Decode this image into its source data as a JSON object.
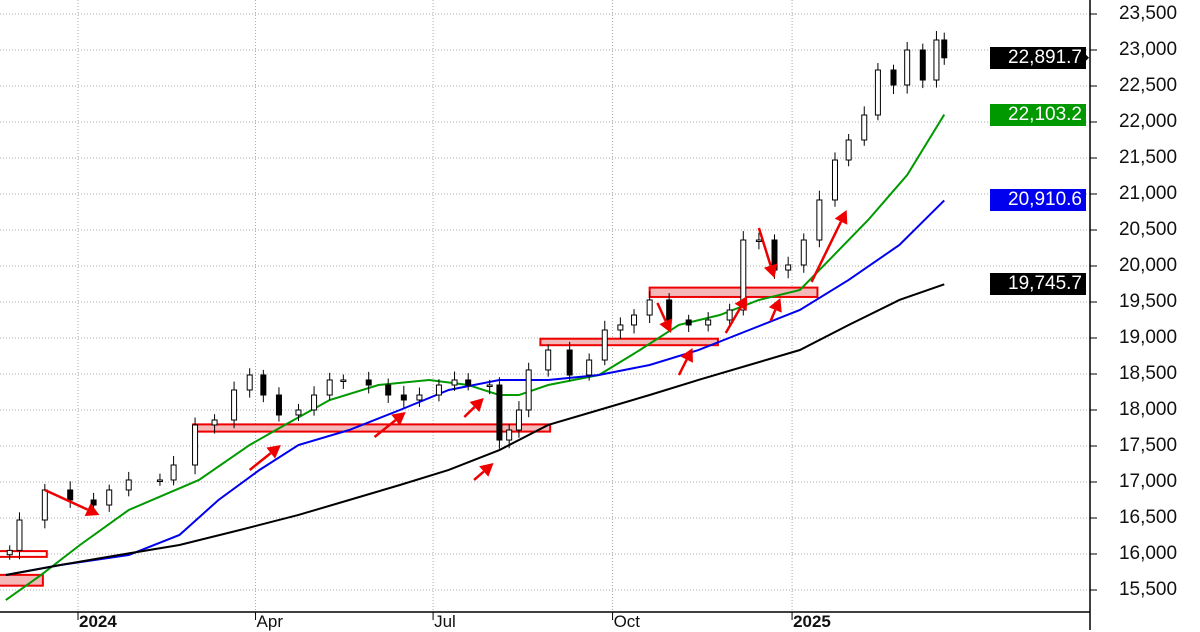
{
  "chart_data": {
    "type": "candlestick",
    "title": "",
    "ylim": [
      15300,
      23700
    ],
    "y_ticks": [
      "15,500",
      "16,000",
      "16,500",
      "17,000",
      "17,500",
      "18,000",
      "18,500",
      "19,000",
      "19,500",
      "20,000",
      "20,500",
      "21,000",
      "21,500",
      "22,000",
      "22,500",
      "23,000",
      "23,500"
    ],
    "y_tick_values": [
      15500,
      16000,
      16500,
      17000,
      17500,
      18000,
      18500,
      19000,
      19500,
      20000,
      20500,
      21000,
      21500,
      22000,
      22500,
      23000,
      23500
    ],
    "x_ticks": [
      {
        "label": "2024",
        "date": "2024-01-01",
        "bold": true
      },
      {
        "label": "Apr",
        "date": "2024-04-01",
        "bold": false
      },
      {
        "label": "Jul",
        "date": "2024-07-01",
        "bold": false
      },
      {
        "label": "Oct",
        "date": "2024-10-01",
        "bold": false
      },
      {
        "label": "2025",
        "date": "2025-01-01",
        "bold": true
      }
    ],
    "grid": true,
    "price": [
      [
        "2023-11-27",
        16050
      ],
      [
        "2023-12-02",
        16472
      ],
      [
        "2023-12-15",
        16889
      ],
      [
        "2023-12-28",
        16750
      ],
      [
        "2024-01-09",
        16680
      ],
      [
        "2024-01-17",
        16889
      ],
      [
        "2024-01-27",
        17028
      ],
      [
        "2024-02-12",
        17028
      ],
      [
        "2024-02-19",
        17236
      ],
      [
        "2024-03-01",
        17792
      ],
      [
        "2024-03-11",
        17861
      ],
      [
        "2024-03-21",
        18278
      ],
      [
        "2024-03-29",
        18486
      ],
      [
        "2024-04-05",
        18208
      ],
      [
        "2024-04-13",
        17931
      ],
      [
        "2024-04-23",
        18000
      ],
      [
        "2024-05-01",
        18208
      ],
      [
        "2024-05-09",
        18417
      ],
      [
        "2024-05-16",
        18417
      ],
      [
        "2024-05-29",
        18347
      ],
      [
        "2024-06-08",
        18208
      ],
      [
        "2024-06-16",
        18139
      ],
      [
        "2024-06-24",
        18208
      ],
      [
        "2024-07-04",
        18347
      ],
      [
        "2024-07-12",
        18417
      ],
      [
        "2024-07-19",
        18347
      ],
      [
        "2024-07-30",
        18347
      ],
      [
        "2024-08-04",
        17583
      ],
      [
        "2024-08-09",
        17722
      ],
      [
        "2024-08-14",
        18000
      ],
      [
        "2024-08-19",
        18556
      ],
      [
        "2024-08-29",
        18833
      ],
      [
        "2024-09-09",
        18486
      ],
      [
        "2024-09-19",
        18694
      ],
      [
        "2024-09-27",
        19111
      ],
      [
        "2024-10-05",
        19181
      ],
      [
        "2024-10-12",
        19319
      ],
      [
        "2024-10-20",
        19528
      ],
      [
        "2024-10-30",
        19250
      ],
      [
        "2024-11-09",
        19181
      ],
      [
        "2024-11-19",
        19250
      ],
      [
        "2024-11-30",
        19389
      ],
      [
        "2024-12-07",
        20361
      ],
      [
        "2024-12-15",
        20361
      ],
      [
        "2024-12-23",
        19944
      ],
      [
        "2024-12-30",
        20014
      ],
      [
        "2025-01-07",
        20361
      ],
      [
        "2025-01-15",
        20917
      ],
      [
        "2025-01-23",
        21472
      ],
      [
        "2025-01-30",
        21750
      ],
      [
        "2025-02-07",
        22097
      ],
      [
        "2025-02-14",
        22722
      ],
      [
        "2025-02-22",
        22514
      ],
      [
        "2025-03-01",
        23000
      ],
      [
        "2025-03-09",
        22583
      ],
      [
        "2025-03-16",
        23139
      ],
      [
        "2025-03-20",
        22892
      ]
    ],
    "series": [
      {
        "color": "#009900",
        "last_label": "22,103.2",
        "points": [
          [
            "2023-11-25",
            15361
          ],
          [
            "2023-12-13",
            15708
          ],
          [
            "2024-01-02",
            16125
          ],
          [
            "2024-01-27",
            16611
          ],
          [
            "2024-03-03",
            17028
          ],
          [
            "2024-03-29",
            17514
          ],
          [
            "2024-04-16",
            17792
          ],
          [
            "2024-05-09",
            18139
          ],
          [
            "2024-06-03",
            18347
          ],
          [
            "2024-06-29",
            18417
          ],
          [
            "2024-07-19",
            18347
          ],
          [
            "2024-08-04",
            18208
          ],
          [
            "2024-08-14",
            18208
          ],
          [
            "2024-08-29",
            18347
          ],
          [
            "2024-09-24",
            18486
          ],
          [
            "2024-10-15",
            18833
          ],
          [
            "2024-11-04",
            19181
          ],
          [
            "2024-11-25",
            19319
          ],
          [
            "2024-12-15",
            19528
          ],
          [
            "2025-01-05",
            19667
          ],
          [
            "2025-01-20",
            20083
          ],
          [
            "2025-02-09",
            20639
          ],
          [
            "2025-03-01",
            21264
          ],
          [
            "2025-03-20",
            22103
          ]
        ]
      },
      {
        "color": "#0000ee",
        "last_label": "20,910.6",
        "points": [
          [
            "2023-11-25",
            15708
          ],
          [
            "2023-12-23",
            15847
          ],
          [
            "2024-01-27",
            15986
          ],
          [
            "2024-02-22",
            16264
          ],
          [
            "2024-03-13",
            16750
          ],
          [
            "2024-04-03",
            17167
          ],
          [
            "2024-04-23",
            17514
          ],
          [
            "2024-05-19",
            17722
          ],
          [
            "2024-06-14",
            18000
          ],
          [
            "2024-07-09",
            18278
          ],
          [
            "2024-08-04",
            18417
          ],
          [
            "2024-08-29",
            18417
          ],
          [
            "2024-09-24",
            18486
          ],
          [
            "2024-10-20",
            18625
          ],
          [
            "2024-11-14",
            18833
          ],
          [
            "2024-12-10",
            19111
          ],
          [
            "2025-01-05",
            19389
          ],
          [
            "2025-01-30",
            19806
          ],
          [
            "2025-02-25",
            20292
          ],
          [
            "2025-03-20",
            20911
          ]
        ]
      },
      {
        "color": "#000000",
        "last_label": "19,745.7",
        "points": [
          [
            "2023-11-25",
            15708
          ],
          [
            "2023-12-23",
            15847
          ],
          [
            "2024-01-22",
            15986
          ],
          [
            "2024-02-22",
            16125
          ],
          [
            "2024-03-24",
            16333
          ],
          [
            "2024-04-23",
            16542
          ],
          [
            "2024-05-19",
            16750
          ],
          [
            "2024-06-14",
            16958
          ],
          [
            "2024-07-09",
            17167
          ],
          [
            "2024-08-04",
            17444
          ],
          [
            "2024-08-29",
            17792
          ],
          [
            "2024-09-24",
            18000
          ],
          [
            "2024-10-20",
            18208
          ],
          [
            "2024-11-14",
            18417
          ],
          [
            "2024-12-10",
            18625
          ],
          [
            "2025-01-05",
            18833
          ],
          [
            "2025-01-30",
            19181
          ],
          [
            "2025-02-25",
            19528
          ],
          [
            "2025-03-20",
            19746
          ]
        ]
      }
    ],
    "last_price_label": "22,891.7",
    "annotations": {
      "color": "#ee0000",
      "zones": [
        {
          "from": "2023-11-20",
          "to": "2023-12-16",
          "low": 15960,
          "high": 16040,
          "fill": "#ffffff"
        },
        {
          "from": "2023-11-20",
          "to": "2023-12-14",
          "low": 15560,
          "high": 15710,
          "fill": "#f5b8b8"
        },
        {
          "from": "2024-02-29",
          "to": "2024-08-30",
          "low": 17700,
          "high": 17800,
          "fill": "#f5b8b8"
        },
        {
          "from": "2024-08-25",
          "to": "2024-11-24",
          "low": 18900,
          "high": 18990,
          "fill": "#f5b8b8"
        },
        {
          "from": "2024-10-20",
          "to": "2025-01-14",
          "low": 19570,
          "high": 19700,
          "fill": "#f5b8b8"
        }
      ],
      "arrows": [
        [
          [
            "2023-12-15",
            16889
          ],
          [
            "2024-01-12",
            16541
          ]
        ],
        [
          [
            "2024-03-29",
            17167
          ],
          [
            "2024-04-14",
            17514
          ]
        ],
        [
          [
            "2024-06-01",
            17625
          ],
          [
            "2024-06-17",
            17972
          ]
        ],
        [
          [
            "2024-07-17",
            17903
          ],
          [
            "2024-07-27",
            18167
          ]
        ],
        [
          [
            "2024-07-22",
            17028
          ],
          [
            "2024-08-01",
            17264
          ]
        ],
        [
          [
            "2024-10-24",
            19486
          ],
          [
            "2024-10-31",
            19069
          ]
        ],
        [
          [
            "2024-11-04",
            18486
          ],
          [
            "2024-11-11",
            18861
          ]
        ],
        [
          [
            "2024-11-28",
            19069
          ],
          [
            "2024-12-09",
            19583
          ]
        ],
        [
          [
            "2024-12-21",
            19236
          ],
          [
            "2024-12-26",
            19556
          ]
        ],
        [
          [
            "2024-12-15",
            20528
          ],
          [
            "2024-12-23",
            19833
          ]
        ],
        [
          [
            "2025-01-11",
            19778
          ],
          [
            "2025-01-29",
            20778
          ]
        ]
      ]
    }
  }
}
